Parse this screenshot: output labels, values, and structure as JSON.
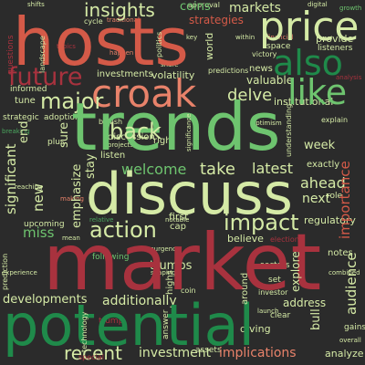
{
  "palette": {
    "background": "#2b2b2b",
    "red": "#d45a48",
    "dark_red": "#a8323e",
    "orange": "#e8826a",
    "light_green": "#d5eaa6",
    "green": "#6ec46f",
    "dark_green": "#1f8a4a",
    "mid_green": "#4aa65e"
  },
  "words": {
    "hosts": "hosts",
    "trends": "trends",
    "market": "market",
    "potential": "potential",
    "discuss": "discuss",
    "croak": "croak",
    "price": "price",
    "also": "also",
    "like": "like",
    "action": "action",
    "future": "future",
    "insights": "insights",
    "impact": "impact",
    "major": "major",
    "back": "back",
    "take": "take",
    "latest": "latest",
    "welcome": "welcome",
    "miss": "miss",
    "recent": "recent",
    "investment": "investment",
    "implications": "implications",
    "developments": "developments",
    "additionally": "additionally",
    "address": "address",
    "trumps": "trumps",
    "importance": "importance",
    "significant": "significant",
    "markets": "markets",
    "coins": "coins",
    "strategies": "strategies",
    "provide": "provide",
    "explore": "explore",
    "regulatory": "regulatory",
    "delve": "delve",
    "valuable": "valuable",
    "volatility": "volatility",
    "institutional": "institutional",
    "investments": "investments",
    "emphasize": "emphasize",
    "ahead": "ahead",
    "next": "next",
    "believe": "believe",
    "audience": "audience",
    "week": "week",
    "exactly": "exactly",
    "insight": "insight",
    "predictions": "predictions",
    "news": "news",
    "informed": "informed",
    "strategic": "strategic",
    "adoption": "adoption",
    "tune": "tune",
    "end": "end",
    "sure": "sure",
    "stay": "stay",
    "new": "new",
    "first": "first",
    "cap": "cap",
    "notes": "notes",
    "analyze": "analyze",
    "diving": "diving",
    "assets": "assets",
    "right": "right",
    "plus": "plus",
    "set": "set",
    "listen": "listen",
    "world": "world",
    "cycle": "cycle",
    "traditional": "traditional",
    "approval": "approval",
    "listeners": "listeners",
    "landscape": "landscape",
    "bullish": "bullish",
    "discussion": "discussion",
    "coin": "coin",
    "upcoming": "upcoming",
    "sectors": "sectors",
    "role": "role",
    "clear": "clear",
    "answer": "answer",
    "following": "following",
    "experience": "experience",
    "technology": "technology",
    "mean": "mean",
    "trump": "trump",
    "special": "special",
    "highs": "highs",
    "gains": "gains",
    "space": "space",
    "victory": "victory",
    "key": "key",
    "topics": "topics",
    "rally": "rally",
    "questions": "questions",
    "making": "making",
    "relative": "relative",
    "notable": "notable",
    "reaching": "reaching",
    "understanding": "understanding",
    "significance": "significance",
    "optimism": "optimism",
    "projects": "projects",
    "combined": "combined",
    "overall": "overall",
    "prediction": "prediction",
    "investor": "investor",
    "bull": "bull",
    "around": "around",
    "breaking": "breaking",
    "digital": "digital",
    "within": "within",
    "shifts": "shifts",
    "financial": "financial",
    "happen": "happen",
    "politics": "politics",
    "growth": "growth",
    "explain": "explain",
    "analysis": "analysis",
    "election": "election",
    "launch": "launch",
    "share": "share",
    "resurgence": "resurgence",
    "shaping": "shaping",
    "outlook": "outlook",
    "crypto": "crypto",
    "potential_small": "potential"
  }
}
